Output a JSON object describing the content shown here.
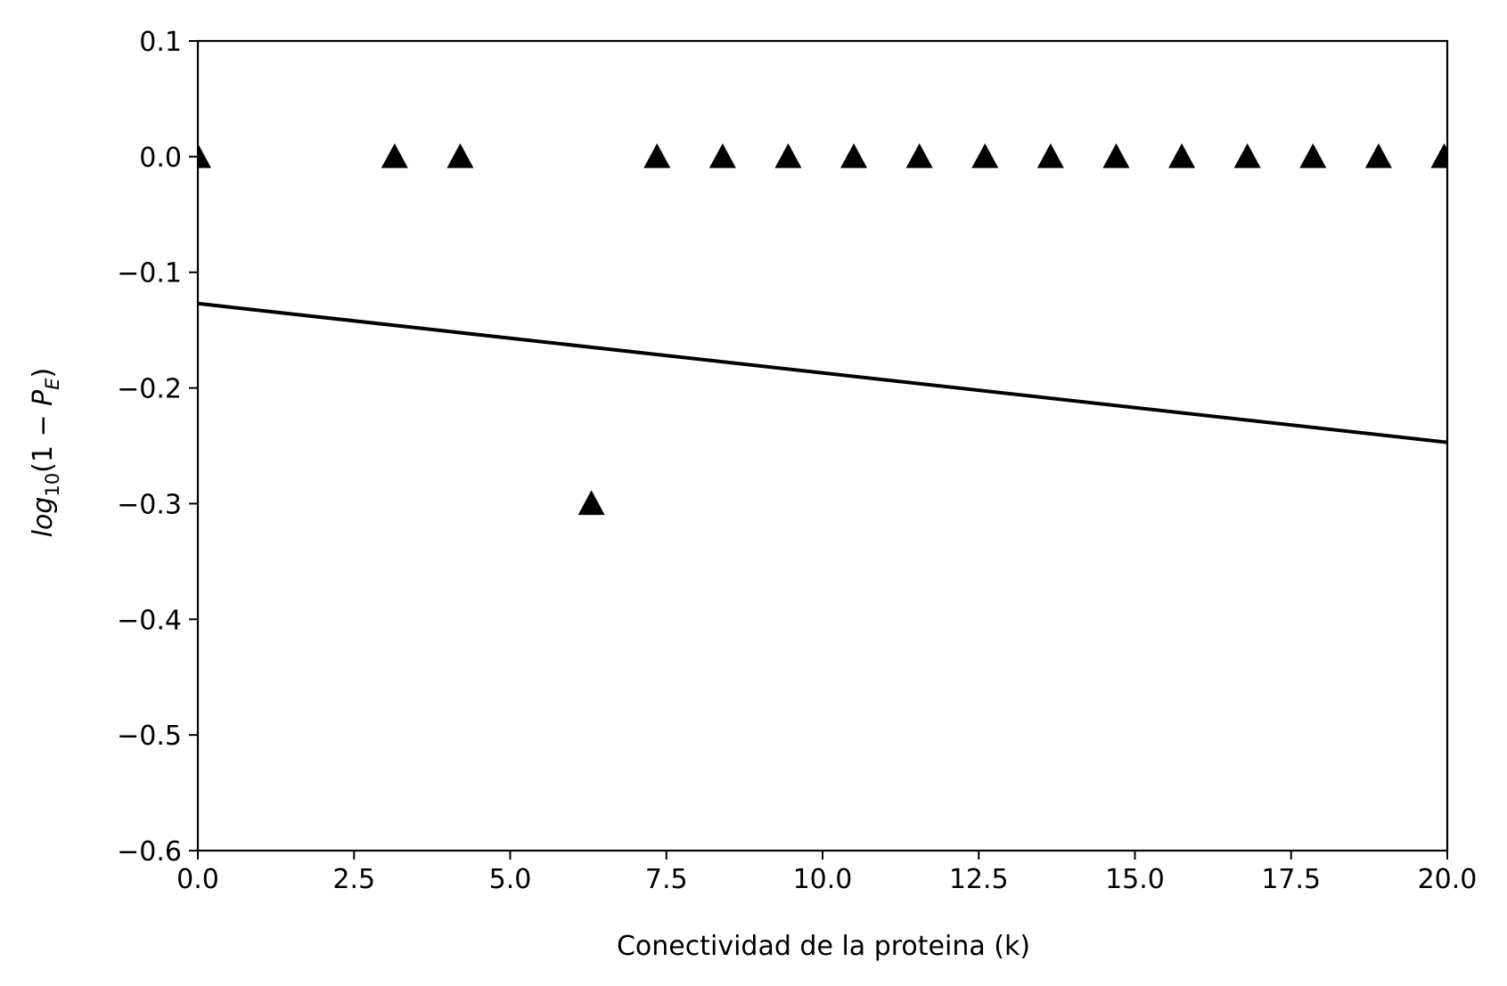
{
  "chart_data": {
    "type": "scatter",
    "xlabel": "Conectividad de la proteina (k)",
    "ylabel": {
      "parts": [
        "log",
        "10",
        "(1 − ",
        "P",
        "E",
        ")"
      ]
    },
    "xlim": [
      0.0,
      20.0
    ],
    "ylim": [
      -0.6,
      0.1
    ],
    "x_ticks": [
      0.0,
      2.5,
      5.0,
      7.5,
      10.0,
      12.5,
      15.0,
      17.5,
      20.0
    ],
    "x_tick_labels": [
      "0.0",
      "2.5",
      "5.0",
      "7.5",
      "10.0",
      "12.5",
      "15.0",
      "17.5",
      "20.0"
    ],
    "y_ticks": [
      0.1,
      0.0,
      -0.1,
      -0.2,
      -0.3,
      -0.4,
      -0.5,
      -0.6
    ],
    "y_tick_labels": [
      "0.1",
      "0.0",
      "−0.1",
      "−0.2",
      "−0.3",
      "−0.4",
      "−0.5",
      "−0.6"
    ],
    "grid": false,
    "series": [
      {
        "kind": "scatter",
        "marker": "triangle-up",
        "color": "#000000",
        "points": [
          {
            "x": 0.0,
            "y": 0.0
          },
          {
            "x": 3.15,
            "y": 0.0
          },
          {
            "x": 4.2,
            "y": 0.0
          },
          {
            "x": 6.3,
            "y": -0.3
          },
          {
            "x": 7.35,
            "y": 0.0
          },
          {
            "x": 8.4,
            "y": 0.0
          },
          {
            "x": 9.45,
            "y": 0.0
          },
          {
            "x": 10.5,
            "y": 0.0
          },
          {
            "x": 11.55,
            "y": 0.0
          },
          {
            "x": 12.6,
            "y": 0.0
          },
          {
            "x": 13.65,
            "y": 0.0
          },
          {
            "x": 14.7,
            "y": 0.0
          },
          {
            "x": 15.75,
            "y": 0.0
          },
          {
            "x": 16.8,
            "y": 0.0
          },
          {
            "x": 17.85,
            "y": 0.0
          },
          {
            "x": 18.9,
            "y": 0.0
          },
          {
            "x": 19.95,
            "y": 0.0
          }
        ]
      },
      {
        "kind": "line",
        "color": "#000000",
        "points": [
          {
            "x": 0.0,
            "y": -0.127
          },
          {
            "x": 20.0,
            "y": -0.247
          }
        ]
      }
    ]
  }
}
